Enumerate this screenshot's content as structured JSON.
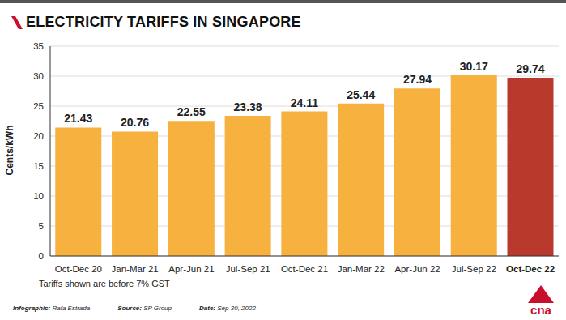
{
  "chart_data": {
    "type": "bar",
    "title": "ELECTRICITY TARIFFS IN SINGAPORE",
    "y_label": "Cents/kWh",
    "categories": [
      "Oct-Dec 20",
      "Jan-Mar 21",
      "Apr-Jun 21",
      "Jul-Sep 21",
      "Oct-Dec 21",
      "Jan-Mar 22",
      "Apr-Jun 22",
      "Jul-Sep 22",
      "Oct-Dec 22"
    ],
    "values": [
      21.43,
      20.76,
      22.55,
      23.38,
      24.11,
      25.44,
      27.94,
      30.17,
      29.74
    ],
    "colors": [
      "#f7b13f",
      "#f7b13f",
      "#f7b13f",
      "#f7b13f",
      "#f7b13f",
      "#f7b13f",
      "#f7b13f",
      "#f7b13f",
      "#b93a2c"
    ],
    "ylim": [
      0,
      35
    ],
    "yticks": [
      0,
      5,
      10,
      15,
      20,
      25,
      30,
      35
    ],
    "grid": true,
    "data_labels": true,
    "note": "Tariffs shown are before 7% GST",
    "credits": [
      {
        "label": "Infographic:",
        "value": "Rafa Estrada"
      },
      {
        "label": "Source:",
        "value": "SP Group"
      },
      {
        "label": "Date:",
        "value": "Sep 30, 2022"
      }
    ],
    "logo": "cna"
  }
}
